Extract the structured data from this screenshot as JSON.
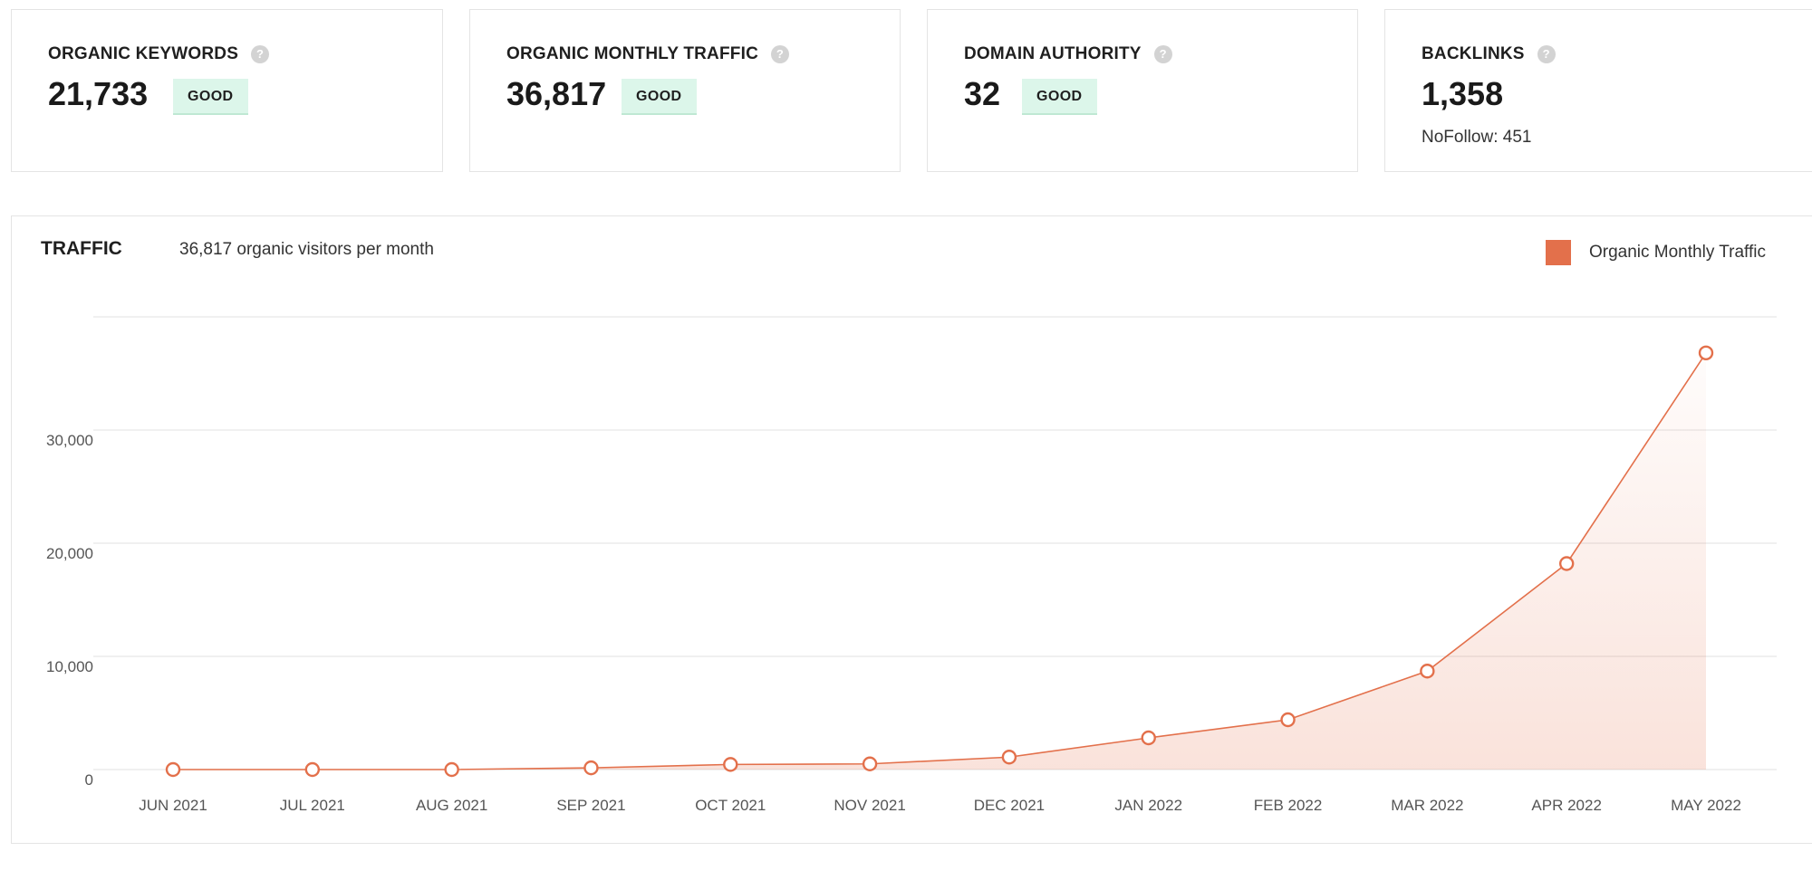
{
  "cards": [
    {
      "title": "ORGANIC KEYWORDS",
      "value": "21,733",
      "badge": "GOOD"
    },
    {
      "title": "ORGANIC MONTHLY TRAFFIC",
      "value": "36,817",
      "badge": "GOOD"
    },
    {
      "title": "DOMAIN AUTHORITY",
      "value": "32",
      "badge": "GOOD"
    },
    {
      "title": "BACKLINKS",
      "value": "1,358",
      "sub": "NoFollow: 451"
    }
  ],
  "help_icon_glyph": "?",
  "traffic": {
    "title": "TRAFFIC",
    "subtitle": "36,817 organic visitors per month",
    "legend_label": "Organic Monthly Traffic"
  },
  "colors": {
    "accent": "#e3704b",
    "badge_bg": "#dcf6ea"
  },
  "chart_data": {
    "type": "area",
    "categories": [
      "JUN 2021",
      "JUL 2021",
      "AUG 2021",
      "SEP 2021",
      "OCT 2021",
      "NOV 2021",
      "DEC 2021",
      "JAN 2022",
      "FEB 2022",
      "MAR 2022",
      "APR 2022",
      "MAY 2022"
    ],
    "series": [
      {
        "name": "Organic Monthly Traffic",
        "values": [
          0,
          0,
          0,
          150,
          450,
          500,
          1100,
          2800,
          4400,
          8700,
          18200,
          36817
        ]
      }
    ],
    "yticks": [
      0,
      10000,
      20000,
      30000
    ],
    "ytick_labels": [
      "0",
      "10,000",
      "20,000",
      "30,000"
    ],
    "ylim": [
      0,
      40000
    ],
    "grid": true,
    "legend": "top-right"
  }
}
